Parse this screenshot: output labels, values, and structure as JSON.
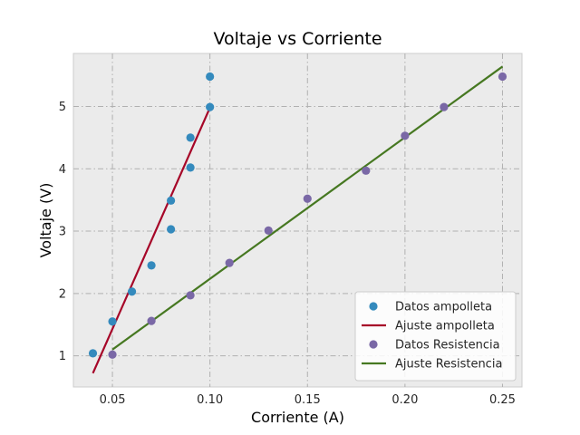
{
  "chart_data": {
    "type": "scatter",
    "title": "Voltaje vs Corriente",
    "xlabel": "Corriente (A)",
    "ylabel": "Voltaje (V)",
    "xlim": [
      0.03,
      0.26
    ],
    "ylim": [
      0.5,
      5.85
    ],
    "xticks": [
      0.05,
      0.1,
      0.15,
      0.2,
      0.25
    ],
    "xtick_labels": [
      "0.05",
      "0.10",
      "0.15",
      "0.20",
      "0.25"
    ],
    "yticks": [
      1,
      2,
      3,
      4,
      5
    ],
    "ytick_labels": [
      "1",
      "2",
      "3",
      "4",
      "5"
    ],
    "grid": true,
    "legend_position": "bottom-right",
    "colors": {
      "plot_background": "#ebebeb",
      "grid": "#b0b0b0",
      "frame": "#cccccc"
    },
    "series": [
      {
        "name": "Datos ampolleta",
        "kind": "scatter",
        "color": "#348abd",
        "x": [
          0.04,
          0.05,
          0.06,
          0.07,
          0.08,
          0.08,
          0.09,
          0.09,
          0.1,
          0.1
        ],
        "y": [
          1.04,
          1.55,
          2.03,
          2.45,
          3.03,
          3.49,
          4.02,
          4.5,
          4.99,
          5.48
        ]
      },
      {
        "name": "Ajuste ampolleta",
        "kind": "line",
        "color": "#a60628",
        "x": [
          0.04,
          0.1
        ],
        "y": [
          0.72,
          4.98
        ]
      },
      {
        "name": "Datos Resistencia",
        "kind": "scatter",
        "color": "#7a68a6",
        "x": [
          0.05,
          0.07,
          0.09,
          0.11,
          0.13,
          0.15,
          0.18,
          0.2,
          0.22,
          0.25
        ],
        "y": [
          1.02,
          1.56,
          1.97,
          2.49,
          3.01,
          3.52,
          3.97,
          4.53,
          4.99,
          5.48
        ]
      },
      {
        "name": "Ajuste Resistencia",
        "kind": "line",
        "color": "#467821",
        "x": [
          0.05,
          0.25
        ],
        "y": [
          1.1,
          5.64
        ]
      }
    ]
  }
}
